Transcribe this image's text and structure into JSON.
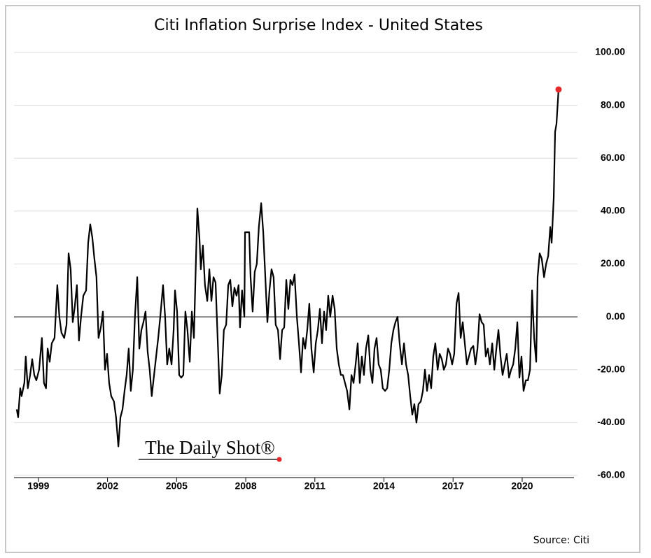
{
  "chart_data": {
    "type": "line",
    "title": "Citi Inflation Surprise Index - United States",
    "source": "Source: Citi",
    "watermark": "The Daily Shot®",
    "color": "#000000",
    "marker_color": "#e8292b",
    "grid": true,
    "xlim": [
      1997.94,
      2022.25
    ],
    "xticks": [
      1999,
      2002,
      2005,
      2008,
      2011,
      2014,
      2017,
      2020
    ],
    "ylim": [
      -60,
      100
    ],
    "yticks": [
      {
        "value": -60,
        "label": "-60.00"
      },
      {
        "value": -40,
        "label": "-40.00"
      },
      {
        "value": -20,
        "label": "-20.00"
      },
      {
        "value": 0,
        "label": "0.00"
      },
      {
        "value": 20,
        "label": "20.00"
      },
      {
        "value": 40,
        "label": "40.00"
      },
      {
        "value": 60,
        "label": "60.00"
      },
      {
        "value": 80,
        "label": "80.00"
      },
      {
        "value": 100,
        "label": "100.00"
      }
    ],
    "x": [
      1998.06,
      1998.12,
      1998.21,
      1998.27,
      1998.39,
      1998.45,
      1998.54,
      1998.64,
      1998.73,
      1998.82,
      1998.91,
      1999.03,
      1999.15,
      1999.24,
      1999.33,
      1999.4,
      1999.49,
      1999.58,
      1999.7,
      1999.82,
      1999.91,
      2000.0,
      2000.12,
      2000.22,
      2000.31,
      2000.4,
      2000.49,
      2000.58,
      2000.67,
      2000.76,
      2000.85,
      2000.95,
      2001.07,
      2001.16,
      2001.25,
      2001.34,
      2001.43,
      2001.52,
      2001.61,
      2001.71,
      2001.8,
      2001.89,
      2001.98,
      2002.07,
      2002.16,
      2002.28,
      2002.37,
      2002.47,
      2002.56,
      2002.65,
      2002.74,
      2002.83,
      2002.92,
      2003.01,
      2003.1,
      2003.19,
      2003.29,
      2003.38,
      2003.47,
      2003.56,
      2003.65,
      2003.74,
      2003.83,
      2003.92,
      2004.02,
      2004.11,
      2004.2,
      2004.29,
      2004.41,
      2004.5,
      2004.59,
      2004.68,
      2004.78,
      2004.87,
      2004.93,
      2005.02,
      2005.11,
      2005.2,
      2005.29,
      2005.38,
      2005.47,
      2005.57,
      2005.66,
      2005.75,
      2005.84,
      2005.9,
      2005.99,
      2006.05,
      2006.14,
      2006.23,
      2006.33,
      2006.42,
      2006.51,
      2006.6,
      2006.69,
      2006.78,
      2006.87,
      2006.96,
      2007.05,
      2007.15,
      2007.24,
      2007.33,
      2007.42,
      2007.51,
      2007.6,
      2007.69,
      2007.75,
      2007.84,
      2007.94,
      2007.97,
      2008.15,
      2008.21,
      2008.3,
      2008.39,
      2008.48,
      2008.57,
      2008.67,
      2008.76,
      2008.85,
      2008.94,
      2009.03,
      2009.12,
      2009.21,
      2009.3,
      2009.4,
      2009.49,
      2009.58,
      2009.67,
      2009.76,
      2009.85,
      2009.94,
      2010.03,
      2010.12,
      2010.22,
      2010.31,
      2010.4,
      2010.49,
      2010.58,
      2010.67,
      2010.76,
      2010.85,
      2010.95,
      2011.04,
      2011.13,
      2011.22,
      2011.31,
      2011.4,
      2011.49,
      2011.58,
      2011.67,
      2011.77,
      2011.86,
      2011.95,
      2012.04,
      2012.13,
      2012.22,
      2012.31,
      2012.4,
      2012.5,
      2012.59,
      2012.68,
      2012.77,
      2012.86,
      2012.95,
      2013.04,
      2013.13,
      2013.22,
      2013.32,
      2013.41,
      2013.5,
      2013.59,
      2013.68,
      2013.77,
      2013.86,
      2013.95,
      2014.05,
      2014.14,
      2014.23,
      2014.32,
      2014.41,
      2014.5,
      2014.59,
      2014.68,
      2014.78,
      2014.87,
      2014.96,
      2015.05,
      2015.14,
      2015.23,
      2015.32,
      2015.41,
      2015.5,
      2015.6,
      2015.69,
      2015.78,
      2015.87,
      2015.96,
      2016.05,
      2016.14,
      2016.23,
      2016.33,
      2016.42,
      2016.51,
      2016.6,
      2016.69,
      2016.78,
      2016.87,
      2016.96,
      2017.05,
      2017.15,
      2017.24,
      2017.33,
      2017.42,
      2017.51,
      2017.6,
      2017.69,
      2017.78,
      2017.88,
      2017.97,
      2018.06,
      2018.15,
      2018.24,
      2018.33,
      2018.42,
      2018.51,
      2018.6,
      2018.7,
      2018.79,
      2018.88,
      2018.97,
      2019.06,
      2019.15,
      2019.24,
      2019.33,
      2019.43,
      2019.52,
      2019.61,
      2019.7,
      2019.79,
      2019.88,
      2019.97,
      2020.06,
      2020.16,
      2020.25,
      2020.34,
      2020.43,
      2020.52,
      2020.61,
      2020.67,
      2020.76,
      2020.85,
      2020.95,
      2021.04,
      2021.13,
      2021.22,
      2021.28,
      2021.37,
      2021.43,
      2021.49,
      2021.58
    ],
    "values": [
      -35,
      -38,
      -27,
      -30,
      -25,
      -15,
      -27,
      -22,
      -16,
      -22,
      -24,
      -20,
      -8,
      -25,
      -27,
      -12,
      -17,
      -10,
      -8,
      12,
      0,
      -6,
      -8,
      -3,
      24,
      18,
      -2,
      4,
      12,
      -9,
      0,
      8,
      10,
      28,
      35,
      30,
      22,
      15,
      -8,
      -4,
      2,
      -20,
      -14,
      -25,
      -30,
      -32,
      -38,
      -49,
      -38,
      -35,
      -28,
      -22,
      -12,
      -28,
      -20,
      0,
      15,
      -12,
      -5,
      -2,
      2,
      -13,
      -20,
      -30,
      -22,
      -15,
      -8,
      0,
      12,
      0,
      -18,
      -12,
      -18,
      -5,
      10,
      2,
      -22,
      -23,
      -22,
      2,
      -5,
      -17,
      2,
      -8,
      22,
      41,
      30,
      18,
      27,
      12,
      6,
      18,
      6,
      15,
      13,
      -8,
      -29,
      -22,
      -5,
      -3,
      12,
      14,
      4,
      11,
      8,
      12,
      -4,
      10,
      0,
      32,
      32,
      15,
      2,
      17,
      20,
      34,
      43,
      32,
      15,
      -2,
      10,
      18,
      15,
      -3,
      -5,
      -16,
      -5,
      -4,
      14,
      3,
      14,
      12,
      16,
      0,
      -10,
      -21,
      -8,
      -12,
      -5,
      5,
      -12,
      -21,
      -10,
      -5,
      3,
      -10,
      2,
      -5,
      8,
      0,
      8,
      3,
      -12,
      -18,
      -22,
      -22,
      -25,
      -28,
      -35,
      -22,
      -25,
      -18,
      -10,
      -25,
      -15,
      -22,
      -12,
      -7,
      -20,
      -25,
      -12,
      -8,
      -18,
      -20,
      -27,
      -28,
      -27,
      -20,
      -10,
      -5,
      -2,
      0,
      -10,
      -18,
      -10,
      -18,
      -22,
      -30,
      -37,
      -33,
      -40,
      -33,
      -32,
      -28,
      -20,
      -28,
      -22,
      -27,
      -15,
      -10,
      -20,
      -14,
      -16,
      -20,
      -18,
      -12,
      -14,
      -18,
      -14,
      5,
      9,
      -8,
      -2,
      -10,
      -18,
      -15,
      -12,
      -11,
      -18,
      -12,
      1,
      -2,
      -3,
      -15,
      -12,
      -18,
      -10,
      -20,
      -12,
      -5,
      -15,
      -22,
      -18,
      -14,
      -23,
      -20,
      -18,
      -12,
      -2,
      -23,
      -15,
      -28,
      -24,
      -24,
      -20,
      10,
      -8,
      -17,
      15,
      24,
      22,
      15,
      20,
      23,
      34,
      28,
      45,
      70,
      73,
      86
    ]
  }
}
